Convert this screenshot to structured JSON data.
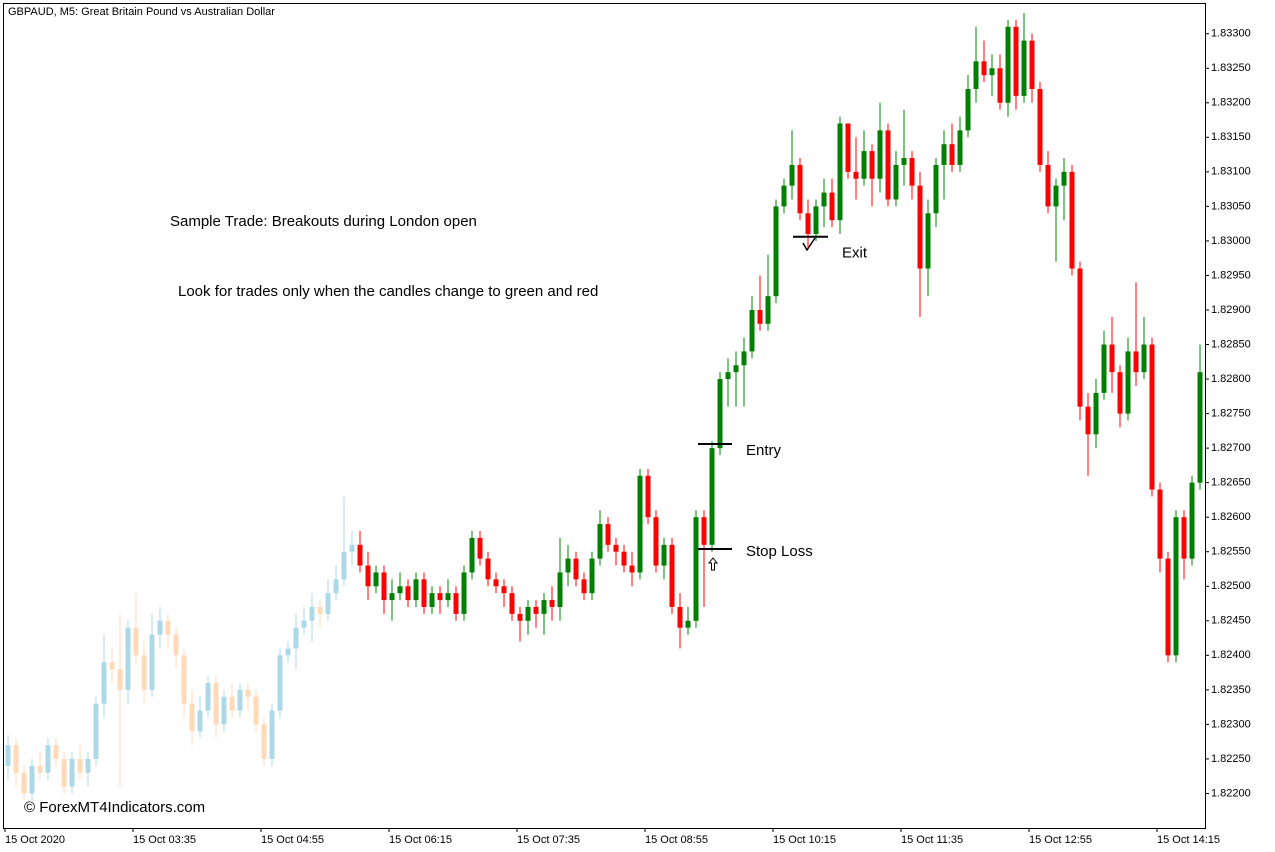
{
  "chart_data": {
    "type": "candlestick",
    "title": "GBPAUD, M5:  Great Britain Pound vs Australian Dollar",
    "annotations": [
      "Sample Trade: Breakouts during London open",
      "Look for trades only when the candles change to green and red"
    ],
    "levels": [
      {
        "label": "Entry",
        "value": 1.82706
      },
      {
        "label": "Stop Loss",
        "value": 1.82554
      },
      {
        "label": "Exit",
        "value": 1.83006
      }
    ],
    "watermark": "© ForexMT4Indicators.com",
    "ylim": [
      1.8215,
      1.83343
    ],
    "yticks": [
      {
        "value": 1.822,
        "label": "1.82200"
      },
      {
        "value": 1.8225,
        "label": "1.82250"
      },
      {
        "value": 1.823,
        "label": "1.82300"
      },
      {
        "value": 1.8235,
        "label": "1.82350"
      },
      {
        "value": 1.824,
        "label": "1.82400"
      },
      {
        "value": 1.8245,
        "label": "1.82450"
      },
      {
        "value": 1.825,
        "label": "1.82500"
      },
      {
        "value": 1.8255,
        "label": "1.82550"
      },
      {
        "value": 1.826,
        "label": "1.82600"
      },
      {
        "value": 1.8265,
        "label": "1.82650"
      },
      {
        "value": 1.827,
        "label": "1.82700"
      },
      {
        "value": 1.8275,
        "label": "1.82750"
      },
      {
        "value": 1.828,
        "label": "1.82800"
      },
      {
        "value": 1.8285,
        "label": "1.82850"
      },
      {
        "value": 1.829,
        "label": "1.82900"
      },
      {
        "value": 1.8295,
        "label": "1.82950"
      },
      {
        "value": 1.83,
        "label": "1.83000"
      },
      {
        "value": 1.8305,
        "label": "1.83050"
      },
      {
        "value": 1.831,
        "label": "1.83100"
      },
      {
        "value": 1.8315,
        "label": "1.83150"
      },
      {
        "value": 1.832,
        "label": "1.83200"
      },
      {
        "value": 1.8325,
        "label": "1.83250"
      },
      {
        "value": 1.833,
        "label": "1.83300"
      }
    ],
    "xticks": [
      {
        "value": 0,
        "label": "15 Oct 2020"
      },
      {
        "value": 16,
        "label": "15 Oct 03:35"
      },
      {
        "value": 32,
        "label": "15 Oct 04:55"
      },
      {
        "value": 48,
        "label": "15 Oct 06:15"
      },
      {
        "value": 64,
        "label": "15 Oct 07:35"
      },
      {
        "value": 80,
        "label": "15 Oct 08:55"
      },
      {
        "value": 96,
        "label": "15 Oct 10:15"
      },
      {
        "value": 112,
        "label": "15 Oct 11:35"
      },
      {
        "value": 128,
        "label": "15 Oct 12:55"
      },
      {
        "value": 144,
        "label": "15 Oct 14:15"
      }
    ],
    "series": [
      {
        "up_color": "#add8e6",
        "down_color": "#ffdab9",
        "ohlc": [
          [
            1.8224,
            1.82285,
            1.8222,
            1.8227
          ],
          [
            1.8227,
            1.8228,
            1.8221,
            1.8223
          ],
          [
            1.8223,
            1.8224,
            1.8219,
            1.822
          ],
          [
            1.822,
            1.8225,
            1.8219,
            1.8224
          ],
          [
            1.8224,
            1.8226,
            1.8222,
            1.8223
          ],
          [
            1.8223,
            1.8228,
            1.8222,
            1.8227
          ],
          [
            1.8227,
            1.8228,
            1.8224,
            1.8225
          ],
          [
            1.8225,
            1.8226,
            1.822,
            1.8221
          ],
          [
            1.8221,
            1.8226,
            1.822,
            1.8225
          ],
          [
            1.8225,
            1.8227,
            1.8222,
            1.8223
          ],
          [
            1.8223,
            1.8226,
            1.8221,
            1.8225
          ],
          [
            1.8225,
            1.8234,
            1.8224,
            1.8233
          ],
          [
            1.8233,
            1.8243,
            1.8231,
            1.8239
          ],
          [
            1.8239,
            1.8241,
            1.8236,
            1.8238
          ],
          [
            1.8238,
            1.8246,
            1.8221,
            1.8235
          ],
          [
            1.8235,
            1.8245,
            1.8233,
            1.8244
          ],
          [
            1.8244,
            1.8249,
            1.8239,
            1.824
          ],
          [
            1.824,
            1.8242,
            1.8233,
            1.8235
          ],
          [
            1.8235,
            1.8246,
            1.8234,
            1.8243
          ],
          [
            1.8243,
            1.8247,
            1.8241,
            1.8245
          ],
          [
            1.8245,
            1.8246,
            1.8241,
            1.8243
          ],
          [
            1.8243,
            1.8244,
            1.8238,
            1.824
          ],
          [
            1.824,
            1.8241,
            1.8231,
            1.8233
          ],
          [
            1.8233,
            1.8235,
            1.8227,
            1.8229
          ],
          [
            1.8229,
            1.8234,
            1.8228,
            1.8232
          ],
          [
            1.8232,
            1.8237,
            1.8231,
            1.8236
          ],
          [
            1.8236,
            1.8237,
            1.8228,
            1.823
          ],
          [
            1.823,
            1.8235,
            1.8229,
            1.8234
          ],
          [
            1.8234,
            1.8236,
            1.8231,
            1.8232
          ],
          [
            1.8232,
            1.8236,
            1.8231,
            1.8235
          ],
          [
            1.8235,
            1.8236,
            1.8232,
            1.8234
          ],
          [
            1.8234,
            1.8235,
            1.8229,
            1.823
          ],
          [
            1.823,
            1.8231,
            1.8224,
            1.8225
          ],
          [
            1.8225,
            1.8233,
            1.8224,
            1.8232
          ],
          [
            1.8232,
            1.8241,
            1.8231,
            1.824
          ],
          [
            1.824,
            1.8242,
            1.8239,
            1.8241
          ],
          [
            1.8241,
            1.8246,
            1.8238,
            1.8244
          ],
          [
            1.8244,
            1.8247,
            1.8243,
            1.8245
          ],
          [
            1.8245,
            1.8249,
            1.8242,
            1.8247
          ],
          [
            1.8247,
            1.8248,
            1.8244,
            1.8246
          ],
          [
            1.8246,
            1.8251,
            1.8245,
            1.8249
          ],
          [
            1.8249,
            1.8253,
            1.8248,
            1.8251
          ],
          [
            1.8251,
            1.8263,
            1.825,
            1.8255
          ],
          [
            1.8255,
            1.8258,
            1.8253,
            1.8256
          ]
        ]
      },
      {
        "up_color": "#008000",
        "down_color": "#ff0000",
        "ohlc": [
          [
            1.8256,
            1.8258,
            1.8252,
            1.8253
          ],
          [
            1.8253,
            1.8255,
            1.8248,
            1.825
          ],
          [
            1.825,
            1.8253,
            1.8249,
            1.8252
          ],
          [
            1.8252,
            1.8253,
            1.8246,
            1.8248
          ],
          [
            1.8248,
            1.8251,
            1.8245,
            1.8249
          ],
          [
            1.8249,
            1.8252,
            1.8248,
            1.825
          ],
          [
            1.825,
            1.8251,
            1.8247,
            1.8248
          ],
          [
            1.8248,
            1.8252,
            1.8247,
            1.8251
          ],
          [
            1.8251,
            1.8252,
            1.8246,
            1.8247
          ],
          [
            1.8247,
            1.825,
            1.8246,
            1.8249
          ],
          [
            1.8249,
            1.825,
            1.8246,
            1.8248
          ],
          [
            1.8248,
            1.8251,
            1.8247,
            1.8249
          ],
          [
            1.8249,
            1.825,
            1.8245,
            1.8246
          ],
          [
            1.8246,
            1.8253,
            1.8245,
            1.8252
          ],
          [
            1.8252,
            1.8258,
            1.8251,
            1.8257
          ],
          [
            1.8257,
            1.8258,
            1.8253,
            1.8254
          ],
          [
            1.8254,
            1.8255,
            1.825,
            1.8251
          ],
          [
            1.8251,
            1.8252,
            1.8249,
            1.825
          ],
          [
            1.825,
            1.8251,
            1.8247,
            1.8249
          ],
          [
            1.8249,
            1.825,
            1.8245,
            1.8246
          ],
          [
            1.8246,
            1.8247,
            1.8242,
            1.8245
          ],
          [
            1.8245,
            1.8248,
            1.8243,
            1.8247
          ],
          [
            1.8247,
            1.8248,
            1.8244,
            1.8246
          ],
          [
            1.8246,
            1.8249,
            1.8243,
            1.8248
          ],
          [
            1.8248,
            1.825,
            1.8245,
            1.8247
          ],
          [
            1.8247,
            1.8257,
            1.8245,
            1.8252
          ],
          [
            1.8252,
            1.8256,
            1.825,
            1.8254
          ],
          [
            1.8254,
            1.8255,
            1.825,
            1.8251
          ],
          [
            1.8251,
            1.8252,
            1.8248,
            1.8249
          ],
          [
            1.8249,
            1.8255,
            1.8248,
            1.8254
          ],
          [
            1.8254,
            1.8261,
            1.8253,
            1.8259
          ],
          [
            1.8259,
            1.826,
            1.8255,
            1.8256
          ],
          [
            1.8256,
            1.8257,
            1.8253,
            1.8255
          ],
          [
            1.8255,
            1.8256,
            1.8252,
            1.8253
          ],
          [
            1.8253,
            1.8255,
            1.825,
            1.8252
          ],
          [
            1.8252,
            1.8267,
            1.8251,
            1.8266
          ],
          [
            1.8266,
            1.8267,
            1.8259,
            1.826
          ],
          [
            1.826,
            1.8261,
            1.8252,
            1.8253
          ],
          [
            1.8253,
            1.8257,
            1.8251,
            1.8256
          ],
          [
            1.8256,
            1.8257,
            1.8246,
            1.8247
          ],
          [
            1.8247,
            1.8249,
            1.8241,
            1.8244
          ],
          [
            1.8244,
            1.8247,
            1.8243,
            1.8245
          ],
          [
            1.8245,
            1.8261,
            1.8244,
            1.826
          ],
          [
            1.826,
            1.8261,
            1.8247,
            1.8256
          ],
          [
            1.8256,
            1.8271,
            1.8255,
            1.827
          ],
          [
            1.827,
            1.8281,
            1.8269,
            1.828
          ],
          [
            1.828,
            1.8283,
            1.8276,
            1.8281
          ],
          [
            1.8281,
            1.8284,
            1.8276,
            1.8282
          ],
          [
            1.8282,
            1.8286,
            1.8276,
            1.8284
          ],
          [
            1.8284,
            1.8292,
            1.8283,
            1.829
          ],
          [
            1.829,
            1.8295,
            1.8287,
            1.8288
          ],
          [
            1.8288,
            1.8298,
            1.8287,
            1.8292
          ],
          [
            1.8292,
            1.8306,
            1.8291,
            1.8305
          ],
          [
            1.8305,
            1.8309,
            1.8304,
            1.8308
          ],
          [
            1.8308,
            1.8316,
            1.8306,
            1.8311
          ],
          [
            1.8311,
            1.8312,
            1.8303,
            1.8304
          ],
          [
            1.8304,
            1.8306,
            1.8299,
            1.8301
          ],
          [
            1.8301,
            1.8306,
            1.83,
            1.8305
          ],
          [
            1.8305,
            1.8309,
            1.8302,
            1.8307
          ],
          [
            1.8307,
            1.8309,
            1.8302,
            1.8303
          ],
          [
            1.8303,
            1.8318,
            1.8301,
            1.8317
          ],
          [
            1.8317,
            1.8317,
            1.8309,
            1.831
          ],
          [
            1.831,
            1.8315,
            1.8306,
            1.8309
          ],
          [
            1.8309,
            1.8316,
            1.8308,
            1.8313
          ],
          [
            1.8313,
            1.8314,
            1.8305,
            1.8309
          ],
          [
            1.8309,
            1.832,
            1.8307,
            1.8316
          ],
          [
            1.8316,
            1.8317,
            1.8305,
            1.8306
          ],
          [
            1.8306,
            1.8313,
            1.8305,
            1.8311
          ],
          [
            1.8311,
            1.8319,
            1.8308,
            1.8312
          ],
          [
            1.8312,
            1.8313,
            1.8306,
            1.8308
          ],
          [
            1.8308,
            1.831,
            1.8289,
            1.8296
          ],
          [
            1.8296,
            1.8306,
            1.8292,
            1.8304
          ],
          [
            1.8304,
            1.8312,
            1.8302,
            1.8311
          ],
          [
            1.8311,
            1.8316,
            1.8306,
            1.8314
          ],
          [
            1.8314,
            1.8317,
            1.831,
            1.8311
          ],
          [
            1.8311,
            1.8318,
            1.831,
            1.8316
          ],
          [
            1.8316,
            1.8324,
            1.8315,
            1.8322
          ],
          [
            1.8322,
            1.8331,
            1.832,
            1.8326
          ],
          [
            1.8326,
            1.8329,
            1.8323,
            1.8324
          ],
          [
            1.8324,
            1.8327,
            1.8321,
            1.8325
          ],
          [
            1.8325,
            1.8327,
            1.8319,
            1.832
          ],
          [
            1.832,
            1.8332,
            1.8318,
            1.8331
          ],
          [
            1.8331,
            1.8332,
            1.8319,
            1.8321
          ],
          [
            1.8321,
            1.8333,
            1.832,
            1.8329
          ],
          [
            1.8329,
            1.833,
            1.832,
            1.8322
          ],
          [
            1.8322,
            1.8323,
            1.831,
            1.8311
          ],
          [
            1.8311,
            1.8313,
            1.8304,
            1.8305
          ],
          [
            1.8305,
            1.8309,
            1.8297,
            1.8308
          ],
          [
            1.8308,
            1.8312,
            1.8303,
            1.831
          ],
          [
            1.831,
            1.8311,
            1.8295,
            1.8296
          ],
          [
            1.8296,
            1.8297,
            1.8274,
            1.8276
          ],
          [
            1.8276,
            1.8278,
            1.8266,
            1.8272
          ],
          [
            1.8272,
            1.828,
            1.827,
            1.8278
          ],
          [
            1.8278,
            1.8287,
            1.8277,
            1.8285
          ],
          [
            1.8285,
            1.8289,
            1.8278,
            1.8281
          ],
          [
            1.8281,
            1.8282,
            1.8273,
            1.8275
          ],
          [
            1.8275,
            1.8286,
            1.8274,
            1.8284
          ],
          [
            1.8284,
            1.8294,
            1.8279,
            1.8281
          ],
          [
            1.8281,
            1.8289,
            1.828,
            1.8285
          ],
          [
            1.8285,
            1.8286,
            1.8263,
            1.8264
          ],
          [
            1.8264,
            1.8265,
            1.8252,
            1.8254
          ],
          [
            1.8254,
            1.8255,
            1.8239,
            1.824
          ],
          [
            1.824,
            1.8261,
            1.8239,
            1.826
          ],
          [
            1.826,
            1.8261,
            1.8251,
            1.8254
          ],
          [
            1.8254,
            1.8266,
            1.8253,
            1.8265
          ],
          [
            1.8265,
            1.8285,
            1.8264,
            1.8281
          ]
        ]
      }
    ]
  }
}
